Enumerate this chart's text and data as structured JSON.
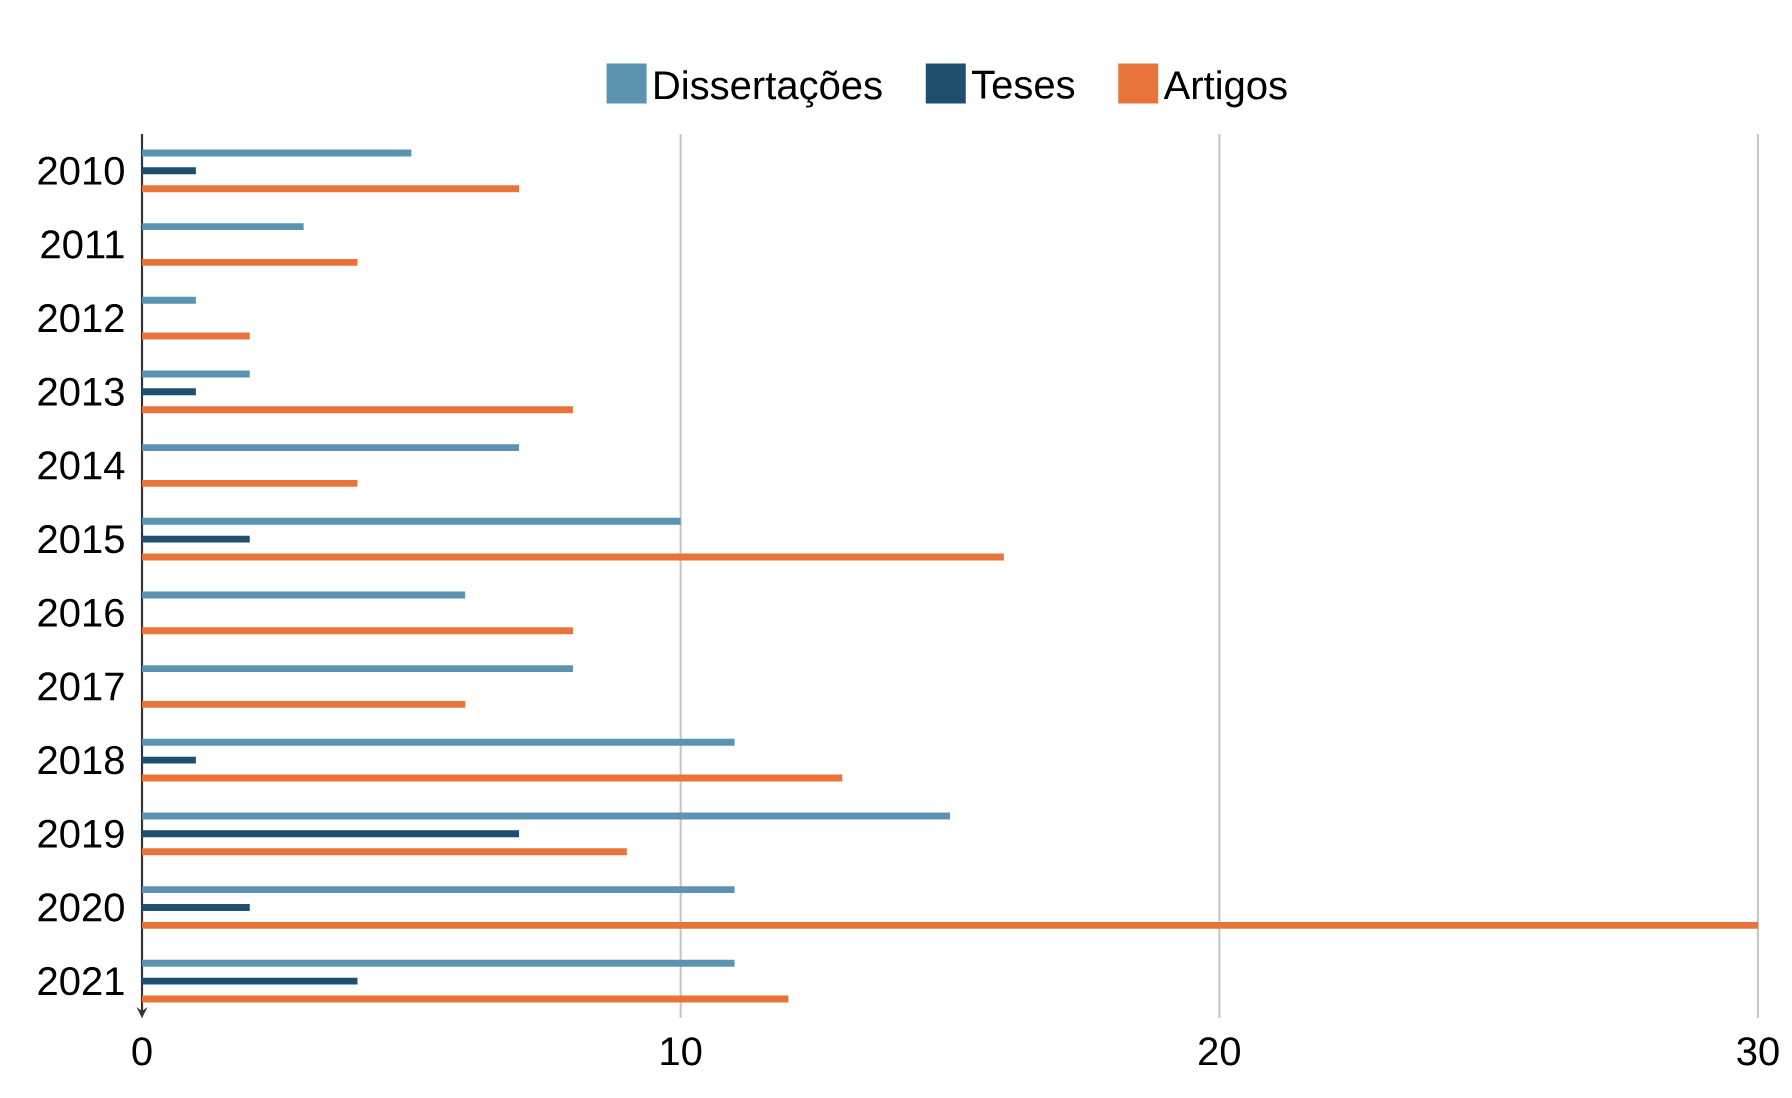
{
  "chart_data": {
    "type": "bar",
    "orientation": "horizontal",
    "categories": [
      "2010",
      "2011",
      "2012",
      "2013",
      "2014",
      "2015",
      "2016",
      "2017",
      "2018",
      "2019",
      "2020",
      "2021"
    ],
    "series": [
      {
        "name": "Dissertações",
        "color": "#5b93b0",
        "values": [
          5,
          3,
          1,
          2,
          7,
          10,
          6,
          8,
          11,
          15,
          11,
          11
        ]
      },
      {
        "name": "Teses",
        "color": "#1f4e6e",
        "values": [
          1,
          0,
          0,
          1,
          0,
          2,
          0,
          0,
          1,
          7,
          2,
          4
        ]
      },
      {
        "name": "Artigos",
        "color": "#e8743b",
        "values": [
          7,
          4,
          2,
          8,
          4,
          16,
          8,
          6,
          13,
          9,
          30,
          12
        ]
      }
    ],
    "xlim": [
      0,
      30
    ],
    "xticks": [
      0,
      10,
      20,
      30
    ],
    "grid": "x",
    "legend": "top"
  }
}
